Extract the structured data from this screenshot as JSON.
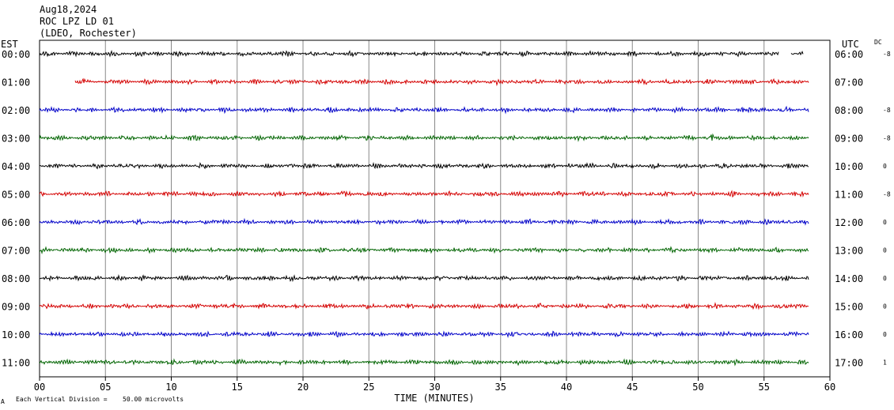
{
  "header": {
    "date": "Aug18,2024",
    "station": "ROC LPZ LD 01",
    "network": "(LDEO, Rochester)"
  },
  "left_axis_label": "EST",
  "right_axis_label": "UTC",
  "dc_label": "DC",
  "footer": {
    "scale_note": "Each Vertical Division =",
    "scale_value": "50.00 microvolts",
    "corner_mark": "A"
  },
  "colors": {
    "trace_cycle": [
      "#000000",
      "#d40000",
      "#0000c8",
      "#006400"
    ],
    "grid": "#888888",
    "frame": "#000000"
  },
  "chart_data": {
    "type": "line",
    "title": "Aug18,2024",
    "xlabel": "TIME (MINUTES)",
    "xlim": [
      0,
      60
    ],
    "x_ticks": [
      "00",
      "05",
      "10",
      "15",
      "20",
      "25",
      "30",
      "35",
      "40",
      "45",
      "50",
      "55",
      "60"
    ],
    "grid": true,
    "rows": [
      {
        "est": "00:00",
        "utc": "06:00",
        "dc": "-8",
        "start_min": 0.0,
        "end_min": 58.0,
        "gap": [
          56.1,
          57.0
        ],
        "events": []
      },
      {
        "est": "01:00",
        "utc": "07:00",
        "dc": "",
        "start_min": 2.7,
        "end_min": 58.4,
        "gap": null,
        "events": [
          {
            "t": 34.8,
            "amp": 1.3
          }
        ]
      },
      {
        "est": "02:00",
        "utc": "08:00",
        "dc": "-8",
        "start_min": 0.0,
        "end_min": 58.4,
        "gap": null,
        "events": [
          {
            "t": 23.4,
            "amp": 1.8
          },
          {
            "t": 5.7,
            "amp": 1.4
          }
        ]
      },
      {
        "est": "03:00",
        "utc": "09:00",
        "dc": "-8",
        "start_min": 0.0,
        "end_min": 58.4,
        "gap": null,
        "events": [
          {
            "t": 51.0,
            "amp": 1.7
          },
          {
            "t": 14.0,
            "amp": 1.3
          }
        ]
      },
      {
        "est": "04:00",
        "utc": "10:00",
        "dc": "0",
        "start_min": 0.0,
        "end_min": 58.4,
        "gap": null,
        "events": [
          {
            "t": 40.3,
            "amp": 1.7
          }
        ]
      },
      {
        "est": "05:00",
        "utc": "11:00",
        "dc": "-8",
        "start_min": 0.0,
        "end_min": 58.4,
        "gap": null,
        "events": [
          {
            "t": 41.2,
            "amp": 1.9
          },
          {
            "t": 9.6,
            "amp": 1.3
          }
        ]
      },
      {
        "est": "06:00",
        "utc": "12:00",
        "dc": "0",
        "start_min": 0.0,
        "end_min": 58.4,
        "gap": null,
        "events": [
          {
            "t": 47.8,
            "amp": 1.7
          },
          {
            "t": 7.0,
            "amp": 1.4
          }
        ]
      },
      {
        "est": "07:00",
        "utc": "13:00",
        "dc": "0",
        "start_min": 0.0,
        "end_min": 58.4,
        "gap": null,
        "events": [
          {
            "t": 5.7,
            "amp": 1.6
          },
          {
            "t": 55.6,
            "amp": 1.5
          }
        ]
      },
      {
        "est": "08:00",
        "utc": "14:00",
        "dc": "0",
        "start_min": 0.0,
        "end_min": 58.4,
        "gap": null,
        "events": [
          {
            "t": 7.8,
            "amp": 1.7
          }
        ]
      },
      {
        "est": "09:00",
        "utc": "15:00",
        "dc": "0",
        "start_min": 0.0,
        "end_min": 58.4,
        "gap": null,
        "events": [
          {
            "t": 15.5,
            "amp": 1.4
          }
        ]
      },
      {
        "est": "10:00",
        "utc": "16:00",
        "dc": "0",
        "start_min": 0.0,
        "end_min": 58.4,
        "gap": null,
        "events": [
          {
            "t": 44.9,
            "amp": 1.3
          }
        ]
      },
      {
        "est": "11:00",
        "utc": "17:00",
        "dc": "1",
        "start_min": 0.0,
        "end_min": 58.4,
        "gap": null,
        "events": [
          {
            "t": 41.2,
            "amp": 1.5
          },
          {
            "t": 39.4,
            "amp": 1.3
          }
        ]
      }
    ]
  }
}
